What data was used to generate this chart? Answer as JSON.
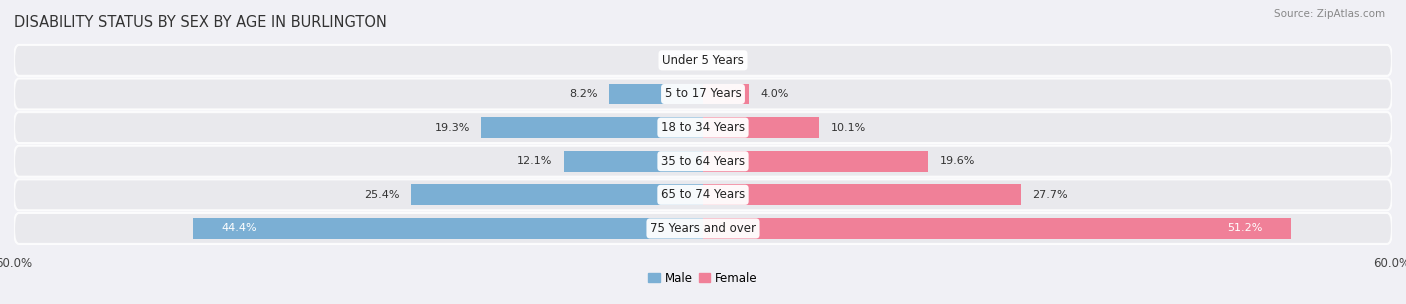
{
  "title": "DISABILITY STATUS BY SEX BY AGE IN BURLINGTON",
  "source": "Source: ZipAtlas.com",
  "categories": [
    "Under 5 Years",
    "5 to 17 Years",
    "18 to 34 Years",
    "35 to 64 Years",
    "65 to 74 Years",
    "75 Years and over"
  ],
  "male_values": [
    0.0,
    8.2,
    19.3,
    12.1,
    25.4,
    44.4
  ],
  "female_values": [
    0.0,
    4.0,
    10.1,
    19.6,
    27.7,
    51.2
  ],
  "male_color": "#7bafd4",
  "female_color": "#f08098",
  "male_label": "Male",
  "female_label": "Female",
  "axis_max": 60.0,
  "bar_height": 0.62,
  "row_bg_color": "#e8e8ec",
  "row_bg_alpha": 0.85,
  "title_fontsize": 10.5,
  "label_fontsize": 8.5,
  "value_fontsize": 8.0,
  "category_fontsize": 8.5
}
